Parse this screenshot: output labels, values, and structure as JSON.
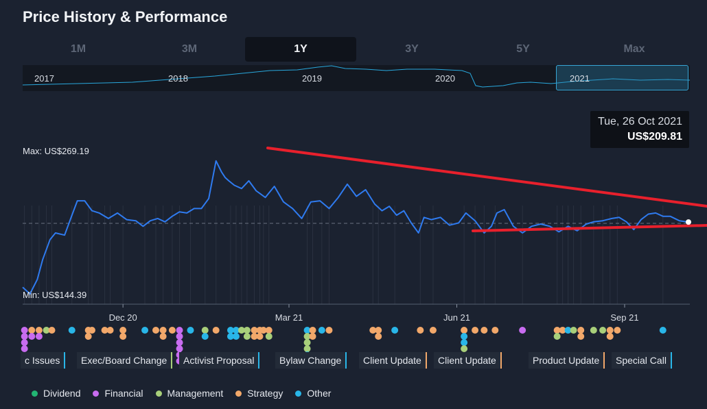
{
  "title": "Price History & Performance",
  "tabs": [
    {
      "label": "1M",
      "active": false
    },
    {
      "label": "3M",
      "active": false
    },
    {
      "label": "1Y",
      "active": true
    },
    {
      "label": "3Y",
      "active": false
    },
    {
      "label": "5Y",
      "active": false
    },
    {
      "label": "Max",
      "active": false
    }
  ],
  "overview": {
    "years": [
      "2017",
      "2018",
      "2019",
      "2020",
      "2021"
    ],
    "selected": "2021"
  },
  "tooltip": {
    "date": "Tue, 26 Oct 2021",
    "price": "US$209.81"
  },
  "colors": {
    "line": "#2f7bf0",
    "trendline": "#e8202c",
    "Dividend": "#22b573",
    "Financial": "#c86cf0",
    "Management": "#a8cf7a",
    "Strategy": "#f2a86a",
    "Other": "#29b6e8"
  },
  "chart_data": {
    "type": "line",
    "max_label": "Max: US$269.19",
    "min_label": "Min: US$144.39",
    "ylim": [
      144.39,
      269.19
    ],
    "x_ticks": [
      "Dec 20",
      "Mar 21",
      "Jun 21",
      "Sep 21"
    ],
    "series": [
      {
        "dates": [
          "2020-10-26",
          "2020-10-30",
          "2020-11-03",
          "2020-11-06",
          "2020-11-10",
          "2020-11-13",
          "2020-11-18",
          "2020-11-22",
          "2020-11-25",
          "2020-11-29",
          "2020-12-03",
          "2020-12-07",
          "2020-12-12",
          "2020-12-17",
          "2020-12-22",
          "2020-12-27",
          "2020-12-31",
          "2021-01-04",
          "2021-01-08",
          "2021-01-12",
          "2021-01-16",
          "2021-01-20",
          "2021-01-24",
          "2021-01-28",
          "2021-02-01",
          "2021-02-05",
          "2021-02-09",
          "2021-02-12",
          "2021-02-14",
          "2021-02-16",
          "2021-02-19",
          "2021-02-23",
          "2021-02-27",
          "2021-03-03",
          "2021-03-08",
          "2021-03-13",
          "2021-03-18",
          "2021-03-23",
          "2021-03-28",
          "2021-04-02",
          "2021-04-07",
          "2021-04-12",
          "2021-04-17",
          "2021-04-22",
          "2021-04-27",
          "2021-05-02",
          "2021-05-07",
          "2021-05-11",
          "2021-05-15",
          "2021-05-19",
          "2021-05-23",
          "2021-05-27",
          "2021-05-31",
          "2021-06-03",
          "2021-06-07",
          "2021-06-12",
          "2021-06-17",
          "2021-06-22",
          "2021-06-26",
          "2021-07-01",
          "2021-07-06",
          "2021-07-10",
          "2021-07-13",
          "2021-07-17",
          "2021-07-22",
          "2021-07-27",
          "2021-08-01",
          "2021-08-06",
          "2021-08-11",
          "2021-08-16",
          "2021-08-21",
          "2021-08-26",
          "2021-08-31",
          "2021-09-04",
          "2021-09-09",
          "2021-09-14",
          "2021-09-18",
          "2021-09-22",
          "2021-09-26",
          "2021-09-30",
          "2021-10-04",
          "2021-10-08",
          "2021-10-12",
          "2021-10-16",
          "2021-10-21",
          "2021-10-26"
        ],
        "values": [
          151,
          145,
          158,
          176,
          194,
          200,
          198,
          216,
          229,
          229,
          220,
          218,
          213,
          218,
          212,
          211,
          206,
          211,
          213,
          210,
          215,
          219,
          218,
          222,
          222,
          231,
          265,
          255,
          250,
          247,
          243,
          240,
          247,
          238,
          232,
          242,
          228,
          222,
          213,
          228,
          229,
          222,
          232,
          244,
          233,
          239,
          226,
          220,
          224,
          216,
          220,
          209,
          200,
          214,
          212,
          214,
          207,
          209,
          218,
          211,
          200,
          206,
          218,
          221,
          206,
          200,
          206,
          208,
          206,
          201,
          206,
          202,
          208,
          210,
          211,
          213,
          214,
          210,
          203,
          212,
          217,
          218,
          215,
          215,
          211,
          209.81
        ]
      }
    ],
    "reference_value": 209.81
  },
  "events": {
    "labels": [
      {
        "text": "c Issues",
        "category": "Other"
      },
      {
        "text": "Exec/Board Change",
        "category": "Management"
      },
      {
        "text": "Activist Proposal",
        "category": "Other"
      },
      {
        "text": "Bylaw Change",
        "category": "Other"
      },
      {
        "text": "Client Update",
        "category": "Strategy"
      },
      {
        "text": "Client Update",
        "category": "Strategy"
      },
      {
        "text": "Product Update",
        "category": "Strategy"
      },
      {
        "text": "Special Call",
        "category": "Other"
      }
    ],
    "dots": [
      {
        "date": "2020-10-27",
        "categories": [
          "Financial",
          "Financial",
          "Financial",
          "Financial"
        ]
      },
      {
        "date": "2020-10-31",
        "categories": [
          "Strategy",
          "Financial"
        ]
      },
      {
        "date": "2020-11-04",
        "categories": [
          "Strategy",
          "Financial"
        ]
      },
      {
        "date": "2020-11-08",
        "categories": [
          "Management"
        ]
      },
      {
        "date": "2020-11-11",
        "categories": [
          "Strategy"
        ]
      },
      {
        "date": "2020-11-22",
        "categories": [
          "Other"
        ]
      },
      {
        "date": "2020-12-01",
        "categories": [
          "Strategy",
          "Strategy"
        ]
      },
      {
        "date": "2020-12-03",
        "categories": [
          "Strategy"
        ]
      },
      {
        "date": "2020-12-10",
        "categories": [
          "Strategy"
        ]
      },
      {
        "date": "2020-12-13",
        "categories": [
          "Strategy"
        ]
      },
      {
        "date": "2020-12-20",
        "categories": [
          "Strategy",
          "Strategy"
        ]
      },
      {
        "date": "2021-01-01",
        "categories": [
          "Other"
        ]
      },
      {
        "date": "2021-01-07",
        "categories": [
          "Strategy"
        ]
      },
      {
        "date": "2021-01-11",
        "categories": [
          "Strategy",
          "Strategy"
        ]
      },
      {
        "date": "2021-01-16",
        "categories": [
          "Strategy"
        ]
      },
      {
        "date": "2021-01-20",
        "categories": [
          "Financial",
          "Financial",
          "Financial",
          "Financial",
          "Financial",
          "Financial"
        ]
      },
      {
        "date": "2021-01-26",
        "categories": [
          "Other"
        ]
      },
      {
        "date": "2021-02-03",
        "categories": [
          "Management",
          "Other"
        ]
      },
      {
        "date": "2021-02-09",
        "categories": [
          "Strategy"
        ]
      },
      {
        "date": "2021-02-17",
        "categories": [
          "Other",
          "Other"
        ]
      },
      {
        "date": "2021-02-20",
        "categories": [
          "Other",
          "Other"
        ]
      },
      {
        "date": "2021-02-23",
        "categories": [
          "Management"
        ]
      },
      {
        "date": "2021-02-26",
        "categories": [
          "Management",
          "Management"
        ]
      },
      {
        "date": "2021-03-02",
        "categories": [
          "Strategy",
          "Strategy"
        ]
      },
      {
        "date": "2021-03-05",
        "categories": [
          "Strategy",
          "Strategy"
        ]
      },
      {
        "date": "2021-03-07",
        "categories": [
          "Strategy"
        ]
      },
      {
        "date": "2021-03-10",
        "categories": [
          "Strategy",
          "Management"
        ]
      },
      {
        "date": "2021-03-31",
        "categories": [
          "Other",
          "Management",
          "Management",
          "Management",
          "Other"
        ]
      },
      {
        "date": "2021-04-03",
        "categories": [
          "Strategy",
          "Strategy"
        ]
      },
      {
        "date": "2021-04-08",
        "categories": [
          "Other"
        ]
      },
      {
        "date": "2021-04-12",
        "categories": [
          "Strategy"
        ]
      },
      {
        "date": "2021-05-06",
        "categories": [
          "Strategy"
        ]
      },
      {
        "date": "2021-05-09",
        "categories": [
          "Strategy",
          "Strategy"
        ]
      },
      {
        "date": "2021-05-18",
        "categories": [
          "Other"
        ]
      },
      {
        "date": "2021-06-01",
        "categories": [
          "Strategy"
        ]
      },
      {
        "date": "2021-06-08",
        "categories": [
          "Strategy"
        ]
      },
      {
        "date": "2021-06-25",
        "categories": [
          "Strategy",
          "Other",
          "Other",
          "Management"
        ]
      },
      {
        "date": "2021-07-01",
        "categories": [
          "Strategy"
        ]
      },
      {
        "date": "2021-07-06",
        "categories": [
          "Strategy"
        ]
      },
      {
        "date": "2021-07-12",
        "categories": [
          "Strategy"
        ]
      },
      {
        "date": "2021-07-27",
        "categories": [
          "Financial"
        ]
      },
      {
        "date": "2021-08-15",
        "categories": [
          "Strategy",
          "Management"
        ]
      },
      {
        "date": "2021-08-18",
        "categories": [
          "Strategy"
        ]
      },
      {
        "date": "2021-08-21",
        "categories": [
          "Other"
        ]
      },
      {
        "date": "2021-08-24",
        "categories": [
          "Management"
        ]
      },
      {
        "date": "2021-08-28",
        "categories": [
          "Strategy",
          "Strategy"
        ]
      },
      {
        "date": "2021-09-04",
        "categories": [
          "Management"
        ]
      },
      {
        "date": "2021-09-09",
        "categories": [
          "Management"
        ]
      },
      {
        "date": "2021-09-13",
        "categories": [
          "Strategy",
          "Strategy"
        ]
      },
      {
        "date": "2021-09-17",
        "categories": [
          "Strategy"
        ]
      },
      {
        "date": "2021-10-12",
        "categories": [
          "Other"
        ]
      }
    ]
  },
  "legend": [
    {
      "label": "Dividend",
      "color": "#22b573"
    },
    {
      "label": "Financial",
      "color": "#c86cf0"
    },
    {
      "label": "Management",
      "color": "#a8cf7a"
    },
    {
      "label": "Strategy",
      "color": "#f2a86a"
    },
    {
      "label": "Other",
      "color": "#29b6e8"
    }
  ]
}
